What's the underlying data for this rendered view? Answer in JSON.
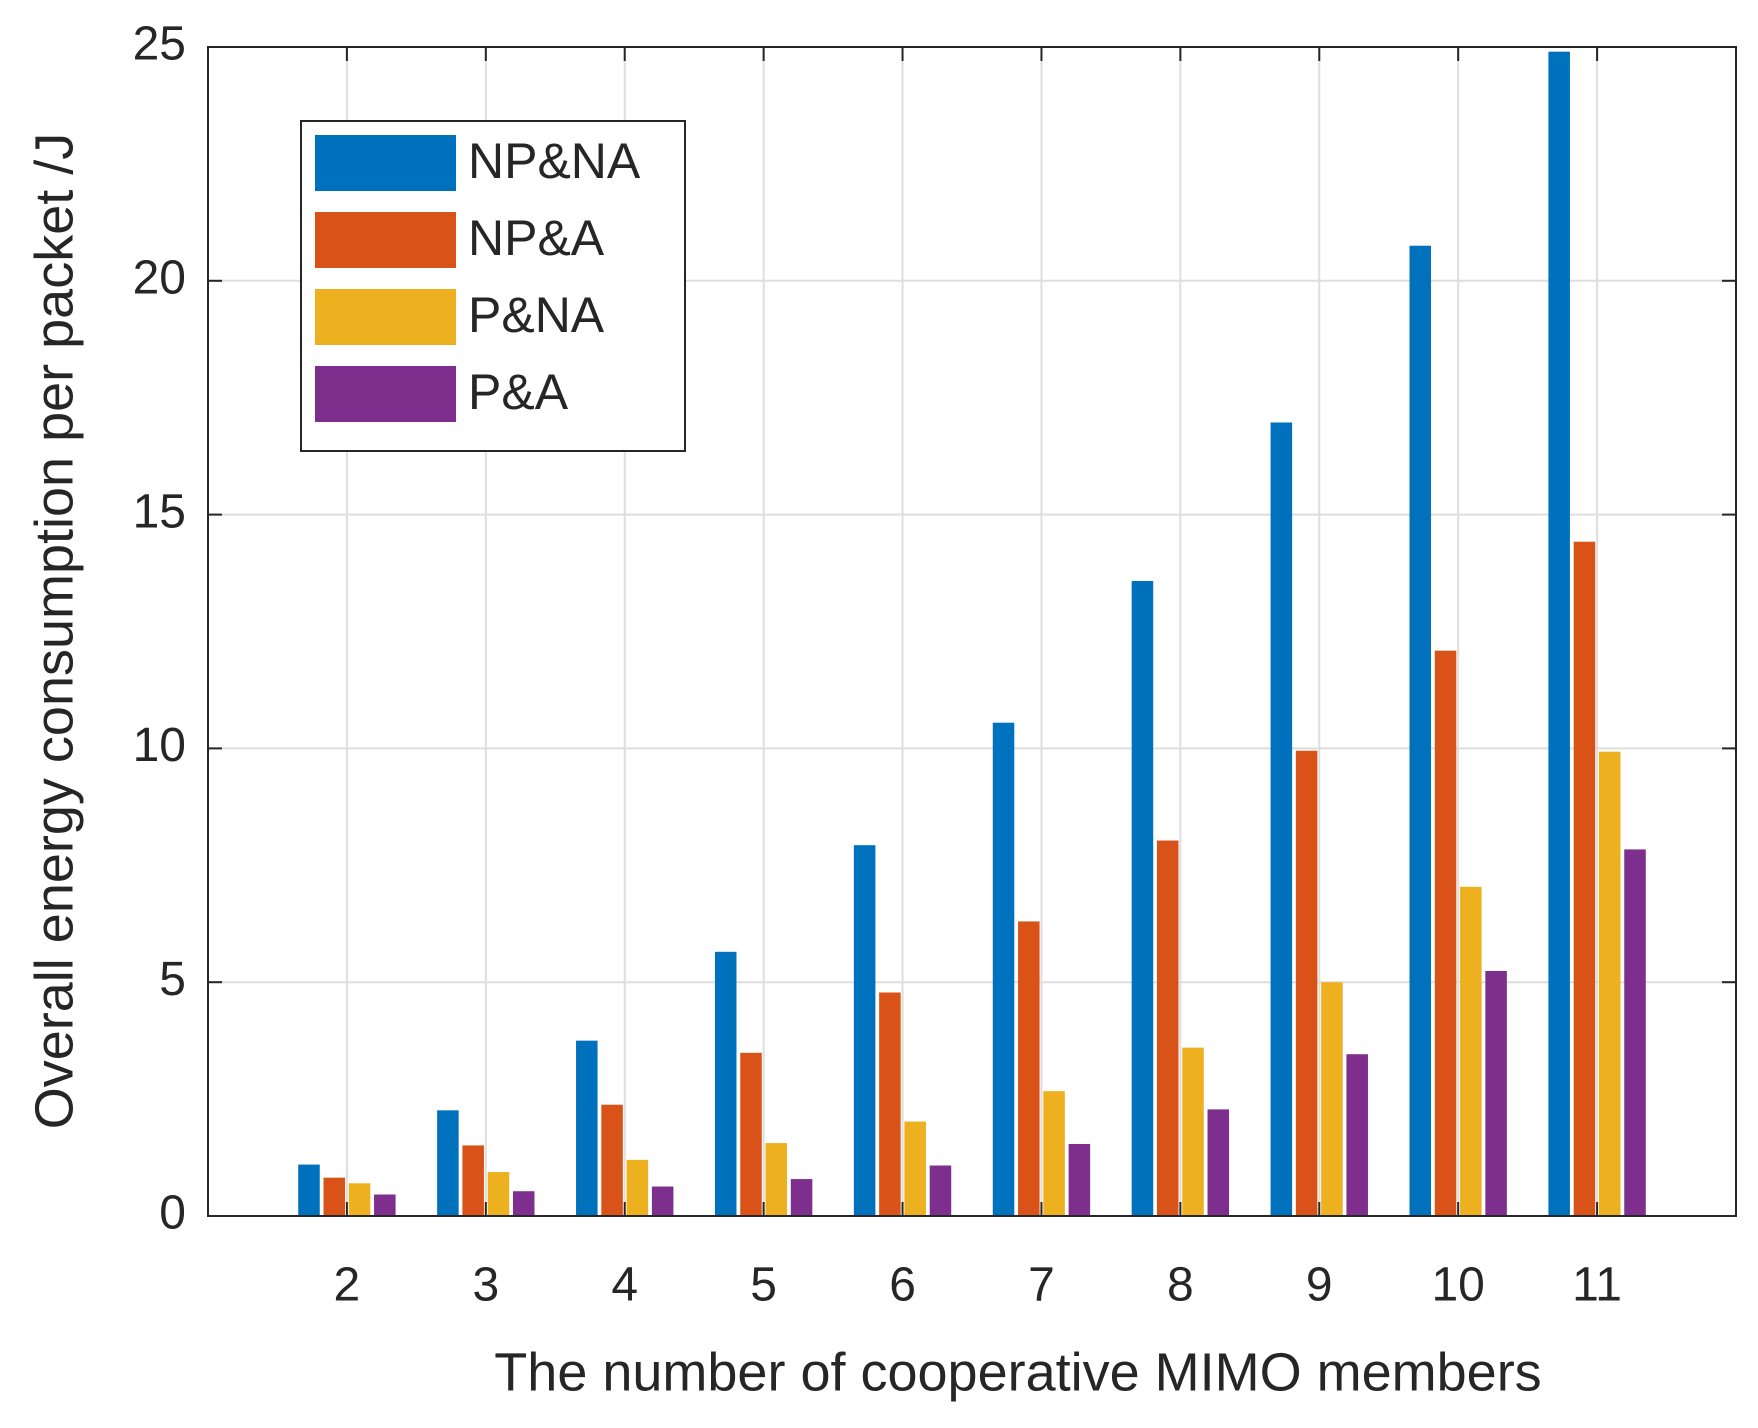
{
  "chart_data": {
    "type": "bar",
    "xlabel": "The number of cooperative MIMO members",
    "ylabel": "Overall energy consumption per packet /J",
    "x": [
      2,
      3,
      4,
      5,
      6,
      7,
      8,
      9,
      10,
      11
    ],
    "xlim": [
      1,
      12
    ],
    "xticks": [
      2,
      3,
      4,
      5,
      6,
      7,
      8,
      9,
      10,
      11
    ],
    "ylim": [
      0,
      25
    ],
    "yticks": [
      0,
      5,
      10,
      15,
      20,
      25
    ],
    "grid": true,
    "legend": "upper left",
    "series": [
      {
        "name": "NP&NA",
        "color": "#0072bd",
        "values": [
          1.1,
          2.26,
          3.75,
          5.65,
          7.93,
          10.55,
          13.58,
          16.97,
          20.75,
          24.9
        ]
      },
      {
        "name": "NP&A",
        "color": "#d95319",
        "values": [
          0.82,
          1.51,
          2.38,
          3.49,
          4.78,
          6.3,
          8.03,
          9.95,
          12.09,
          14.42
        ]
      },
      {
        "name": "P&NA",
        "color": "#edb120",
        "values": [
          0.7,
          0.94,
          1.2,
          1.56,
          2.02,
          2.67,
          3.6,
          5.0,
          7.04,
          9.93
        ]
      },
      {
        "name": "P&A",
        "color": "#7e2f8e",
        "values": [
          0.46,
          0.53,
          0.63,
          0.79,
          1.08,
          1.54,
          2.28,
          3.46,
          5.24,
          7.84
        ]
      }
    ]
  }
}
